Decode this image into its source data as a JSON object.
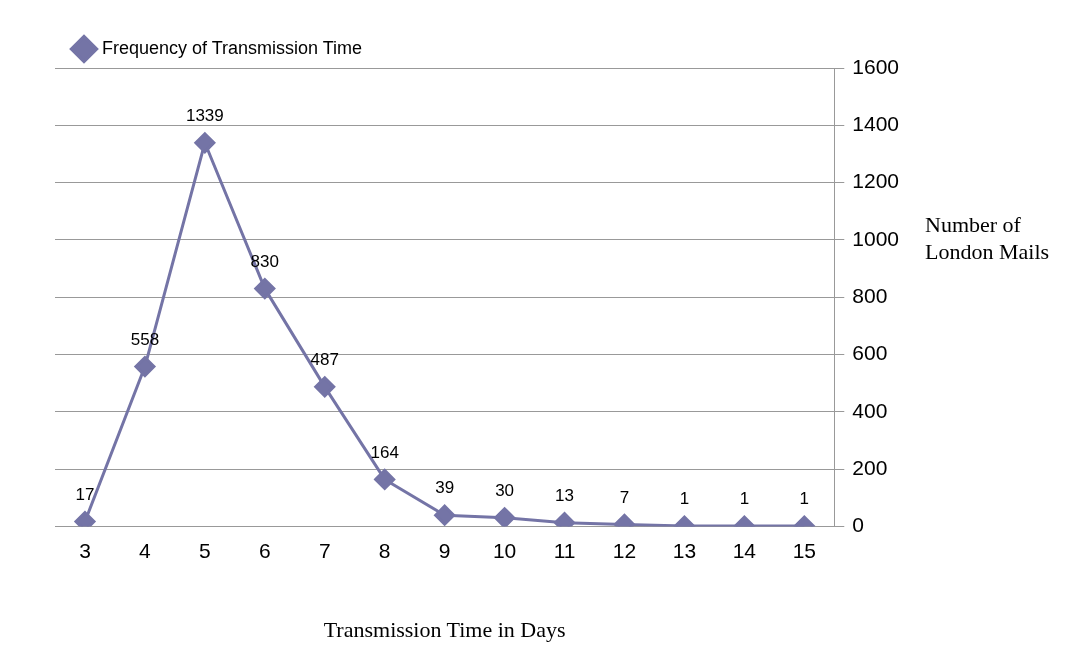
{
  "chart_data": {
    "type": "line",
    "xlabel": "Transmission Time in Days",
    "ylabel": "Number of London Mails",
    "categories": [
      "3",
      "4",
      "5",
      "6",
      "7",
      "8",
      "9",
      "10",
      "11",
      "12",
      "13",
      "14",
      "15"
    ],
    "series": [
      {
        "name": "Frequency of Transmission Time",
        "color": "#7474a6",
        "values": [
          17,
          558,
          1339,
          830,
          487,
          164,
          39,
          30,
          13,
          7,
          1,
          1,
          1
        ]
      }
    ],
    "ylim": [
      0,
      1600
    ],
    "yticks": [
      0,
      200,
      400,
      600,
      800,
      1000,
      1200,
      1400,
      1600
    ],
    "grid": "y",
    "legend": "top left",
    "marker": "diamond",
    "line_style": "solid",
    "data_labels": true
  }
}
